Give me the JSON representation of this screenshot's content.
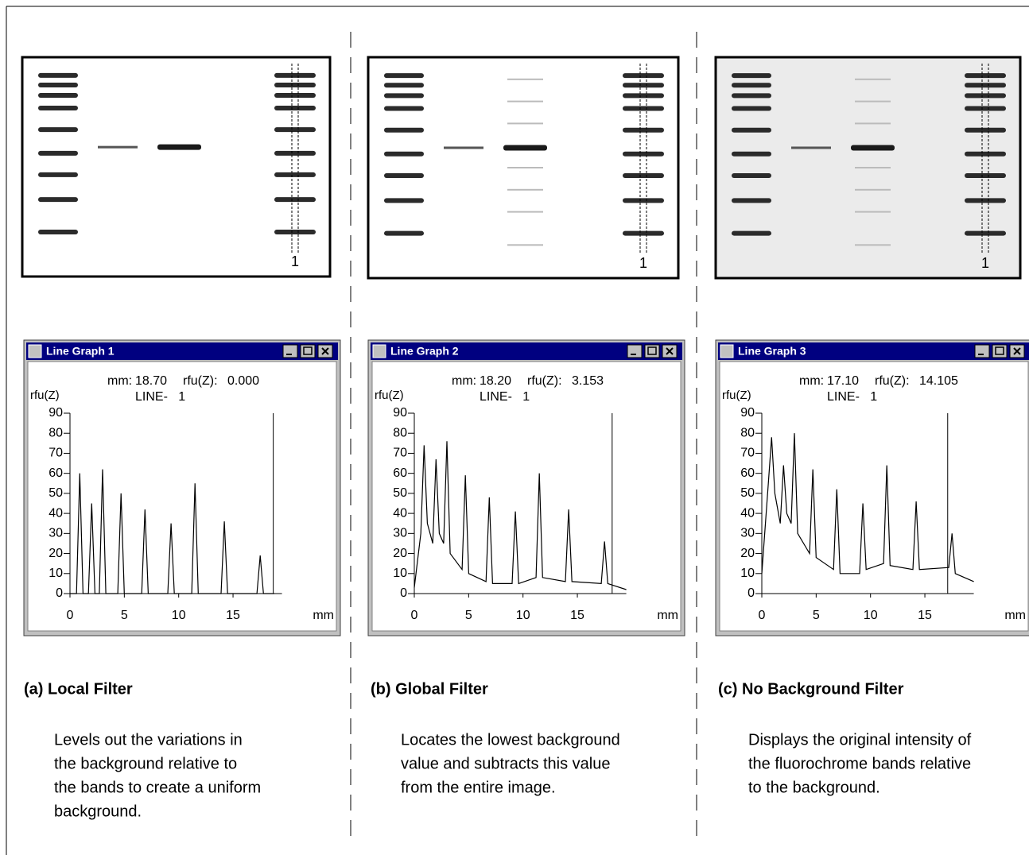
{
  "panels": [
    {
      "gel": {
        "lane_label": "1"
      },
      "window": {
        "title": "Line Graph 1",
        "mm_label": "mm:",
        "mm_value": {
          "value": 18.7,
          "label": "18.70"
        },
        "rfu_label": "rfu(Z):",
        "rfu_value": {
          "value": 0,
          "label": "0.000"
        },
        "line_label": "LINE-   1"
      },
      "chart_data": {
        "type": "line",
        "y_label": "rfu(Z)",
        "x_label": "mm",
        "color": "#000000",
        "xlim": [
          0,
          19.5
        ],
        "ylim": [
          0,
          90
        ],
        "xticks": [
          0,
          5,
          10,
          15
        ],
        "yticks": [
          0,
          10,
          20,
          30,
          40,
          50,
          60,
          70,
          80,
          90
        ],
        "x": [
          0,
          0.6,
          0.9,
          1.2,
          1.7,
          2.0,
          2.3,
          2.7,
          3.0,
          3.3,
          4.4,
          4.7,
          5.0,
          6.6,
          6.9,
          7.2,
          9.0,
          9.3,
          9.6,
          11.2,
          11.5,
          11.8,
          13.9,
          14.2,
          14.5,
          17.2,
          17.5,
          17.8,
          18.8
        ],
        "values": [
          0,
          0,
          60,
          0,
          0,
          45,
          0,
          0,
          62,
          0,
          0,
          50,
          0,
          0,
          42,
          0,
          0,
          35,
          0,
          0,
          55,
          0,
          0,
          36,
          0,
          0,
          19,
          0,
          0
        ]
      },
      "caption": {
        "title": "(a) Local Filter",
        "body": [
          "Levels out the variations in",
          "the background relative to",
          "the bands to create a uniform",
          "background."
        ]
      }
    },
    {
      "gel": {
        "lane_label": "1"
      },
      "window": {
        "title": "Line Graph 2",
        "mm_label": "mm:",
        "mm_value": {
          "value": 18.2,
          "label": "18.20"
        },
        "rfu_label": "rfu(Z):",
        "rfu_value": {
          "value": 3.153,
          "label": "3.153"
        },
        "line_label": "LINE-   1"
      },
      "chart_data": {
        "type": "line",
        "y_label": "rfu(Z)",
        "x_label": "mm",
        "color": "#000000",
        "xlim": [
          0,
          19.5
        ],
        "ylim": [
          0,
          90
        ],
        "xticks": [
          0,
          5,
          10,
          15
        ],
        "yticks": [
          0,
          10,
          20,
          30,
          40,
          50,
          60,
          70,
          80,
          90
        ],
        "x": [
          0,
          0.6,
          0.9,
          1.2,
          1.7,
          2.0,
          2.3,
          2.7,
          3.0,
          3.3,
          4.4,
          4.7,
          5.0,
          6.6,
          6.9,
          7.2,
          9.0,
          9.3,
          9.6,
          11.2,
          11.5,
          11.8,
          13.9,
          14.2,
          14.5,
          17.2,
          17.5,
          17.8,
          19.5
        ],
        "values": [
          3,
          30,
          74,
          35,
          25,
          67,
          30,
          25,
          76,
          20,
          12,
          59,
          10,
          6,
          48,
          5,
          5,
          41,
          5,
          8,
          60,
          8,
          6,
          42,
          6,
          5,
          26,
          5,
          2
        ]
      },
      "caption": {
        "title": "(b) Global Filter",
        "body": [
          "Locates the lowest background",
          "value and subtracts this value",
          "from the entire image."
        ]
      }
    },
    {
      "gel": {
        "lane_label": "1"
      },
      "window": {
        "title": "Line Graph 3",
        "mm_label": "mm:",
        "mm_value": {
          "value": 17.1,
          "label": "17.10"
        },
        "rfu_label": "rfu(Z):",
        "rfu_value": {
          "value": 14.105,
          "label": "14.105"
        },
        "line_label": "LINE-   1"
      },
      "chart_data": {
        "type": "line",
        "y_label": "rfu(Z)",
        "x_label": "mm",
        "color": "#000000",
        "xlim": [
          0,
          19.5
        ],
        "ylim": [
          0,
          90
        ],
        "xticks": [
          0,
          5,
          10,
          15
        ],
        "yticks": [
          0,
          10,
          20,
          30,
          40,
          50,
          60,
          70,
          80,
          90
        ],
        "x": [
          0,
          0.6,
          0.9,
          1.2,
          1.7,
          2.0,
          2.3,
          2.7,
          3.0,
          3.3,
          4.4,
          4.7,
          5.0,
          6.6,
          6.9,
          7.2,
          9.0,
          9.3,
          9.6,
          11.2,
          11.5,
          11.8,
          13.9,
          14.2,
          14.5,
          17.2,
          17.5,
          17.8,
          19.5
        ],
        "values": [
          10,
          55,
          78,
          50,
          35,
          64,
          40,
          35,
          80,
          30,
          20,
          62,
          18,
          12,
          52,
          10,
          10,
          45,
          12,
          15,
          64,
          14,
          12,
          46,
          12,
          13,
          30,
          10,
          6
        ]
      },
      "caption": {
        "title": "(c) No Background Filter",
        "body": [
          "Displays the original intensity of",
          "the fluorochrome bands relative",
          "to the background."
        ]
      }
    }
  ]
}
